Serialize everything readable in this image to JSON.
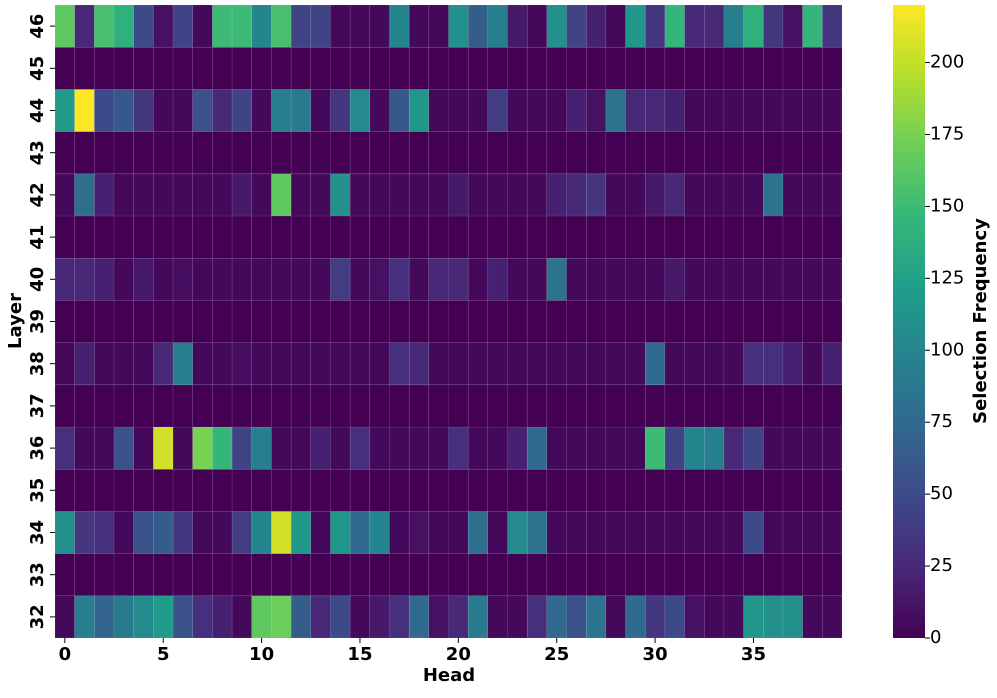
{
  "chart_data": {
    "type": "heatmap",
    "x_label": "Head",
    "y_label": "Layer",
    "colorbar_label": "Selection Frequency",
    "colormap": "viridis",
    "x": [
      0,
      1,
      2,
      3,
      4,
      5,
      6,
      7,
      8,
      9,
      10,
      11,
      12,
      13,
      14,
      15,
      16,
      17,
      18,
      19,
      20,
      21,
      22,
      23,
      24,
      25,
      26,
      27,
      28,
      29,
      30,
      31,
      32,
      33,
      34,
      35,
      36,
      37,
      38,
      39
    ],
    "xticks": [
      0,
      5,
      10,
      15,
      20,
      25,
      30,
      35
    ],
    "y": [
      32,
      33,
      34,
      35,
      36,
      37,
      38,
      39,
      40,
      41,
      42,
      43,
      44,
      45,
      46
    ],
    "clim": [
      0,
      220
    ],
    "cticks": [
      0,
      25,
      50,
      75,
      100,
      125,
      150,
      175,
      200
    ],
    "values": [
      [
        5,
        95,
        70,
        90,
        105,
        120,
        55,
        30,
        20,
        5,
        165,
        170,
        65,
        25,
        50,
        5,
        15,
        30,
        75,
        10,
        25,
        90,
        5,
        5,
        30,
        75,
        55,
        85,
        5,
        75,
        35,
        50,
        10,
        5,
        5,
        115,
        110,
        110,
        5,
        5
      ],
      [
        0,
        0,
        0,
        0,
        0,
        0,
        0,
        0,
        0,
        0,
        0,
        0,
        0,
        0,
        0,
        0,
        0,
        0,
        0,
        0,
        0,
        0,
        0,
        0,
        0,
        0,
        0,
        0,
        0,
        0,
        0,
        0,
        0,
        0,
        0,
        0,
        0,
        0,
        0,
        0
      ],
      [
        110,
        35,
        30,
        5,
        55,
        65,
        35,
        5,
        5,
        40,
        100,
        205,
        115,
        5,
        115,
        75,
        100,
        5,
        10,
        5,
        5,
        80,
        5,
        105,
        85,
        5,
        5,
        5,
        5,
        5,
        5,
        5,
        5,
        5,
        5,
        50,
        5,
        5,
        5,
        5
      ],
      [
        0,
        0,
        0,
        0,
        0,
        0,
        0,
        0,
        0,
        0,
        0,
        0,
        0,
        0,
        0,
        0,
        0,
        0,
        0,
        0,
        0,
        0,
        0,
        0,
        0,
        0,
        0,
        0,
        0,
        0,
        0,
        0,
        0,
        0,
        0,
        0,
        0,
        0,
        0,
        0
      ],
      [
        30,
        5,
        5,
        55,
        5,
        205,
        5,
        175,
        145,
        45,
        95,
        5,
        5,
        20,
        5,
        30,
        5,
        5,
        5,
        5,
        30,
        5,
        5,
        20,
        75,
        5,
        5,
        5,
        5,
        5,
        150,
        45,
        100,
        95,
        25,
        45,
        5,
        5,
        5,
        5
      ],
      [
        0,
        0,
        0,
        0,
        0,
        0,
        0,
        0,
        0,
        0,
        0,
        0,
        0,
        0,
        0,
        0,
        0,
        0,
        0,
        0,
        0,
        0,
        0,
        0,
        0,
        0,
        0,
        0,
        0,
        0,
        0,
        0,
        0,
        0,
        0,
        0,
        0,
        0,
        0,
        0
      ],
      [
        5,
        20,
        5,
        5,
        5,
        25,
        95,
        5,
        5,
        8,
        5,
        5,
        5,
        5,
        5,
        5,
        5,
        30,
        25,
        5,
        5,
        5,
        5,
        5,
        5,
        5,
        5,
        5,
        5,
        5,
        75,
        5,
        5,
        5,
        5,
        30,
        30,
        20,
        5,
        20
      ],
      [
        0,
        0,
        0,
        0,
        0,
        0,
        0,
        0,
        0,
        0,
        0,
        0,
        0,
        0,
        0,
        0,
        0,
        0,
        0,
        0,
        0,
        0,
        0,
        0,
        0,
        0,
        0,
        0,
        0,
        0,
        0,
        0,
        0,
        0,
        0,
        0,
        0,
        0,
        0,
        0
      ],
      [
        25,
        25,
        20,
        5,
        15,
        5,
        8,
        5,
        5,
        5,
        5,
        5,
        5,
        5,
        40,
        5,
        10,
        30,
        5,
        25,
        25,
        5,
        20,
        5,
        5,
        85,
        5,
        5,
        5,
        5,
        5,
        15,
        5,
        5,
        5,
        5,
        5,
        5,
        5,
        5
      ],
      [
        0,
        0,
        0,
        0,
        0,
        0,
        0,
        0,
        0,
        0,
        0,
        0,
        0,
        0,
        0,
        0,
        0,
        0,
        0,
        0,
        0,
        0,
        0,
        0,
        0,
        0,
        0,
        0,
        0,
        0,
        0,
        0,
        0,
        0,
        0,
        0,
        0,
        0,
        0,
        0
      ],
      [
        5,
        80,
        20,
        5,
        5,
        5,
        5,
        5,
        5,
        15,
        5,
        165,
        5,
        5,
        110,
        5,
        5,
        5,
        5,
        5,
        15,
        5,
        5,
        5,
        5,
        20,
        25,
        35,
        5,
        5,
        15,
        25,
        5,
        5,
        5,
        5,
        85,
        5,
        5,
        5
      ],
      [
        0,
        0,
        0,
        0,
        0,
        0,
        0,
        0,
        0,
        0,
        0,
        0,
        0,
        0,
        0,
        0,
        0,
        0,
        0,
        0,
        0,
        0,
        0,
        0,
        0,
        0,
        0,
        0,
        0,
        0,
        0,
        0,
        0,
        0,
        0,
        0,
        0,
        0,
        0,
        0
      ],
      [
        120,
        220,
        50,
        60,
        35,
        5,
        5,
        55,
        25,
        45,
        5,
        95,
        90,
        5,
        35,
        105,
        5,
        60,
        115,
        5,
        5,
        5,
        40,
        5,
        5,
        5,
        20,
        10,
        85,
        25,
        25,
        20,
        5,
        5,
        5,
        5,
        5,
        5,
        5,
        5
      ],
      [
        0,
        0,
        0,
        0,
        0,
        0,
        0,
        0,
        0,
        0,
        0,
        0,
        0,
        0,
        0,
        0,
        0,
        0,
        0,
        0,
        0,
        0,
        0,
        0,
        0,
        0,
        0,
        0,
        0,
        0,
        0,
        0,
        0,
        0,
        0,
        0,
        0,
        0,
        0,
        0
      ],
      [
        165,
        25,
        155,
        140,
        50,
        10,
        45,
        5,
        150,
        150,
        100,
        155,
        45,
        45,
        5,
        5,
        5,
        100,
        5,
        5,
        110,
        65,
        95,
        15,
        5,
        110,
        45,
        20,
        5,
        115,
        35,
        145,
        25,
        25,
        95,
        140,
        35,
        10,
        145,
        35
      ]
    ]
  }
}
